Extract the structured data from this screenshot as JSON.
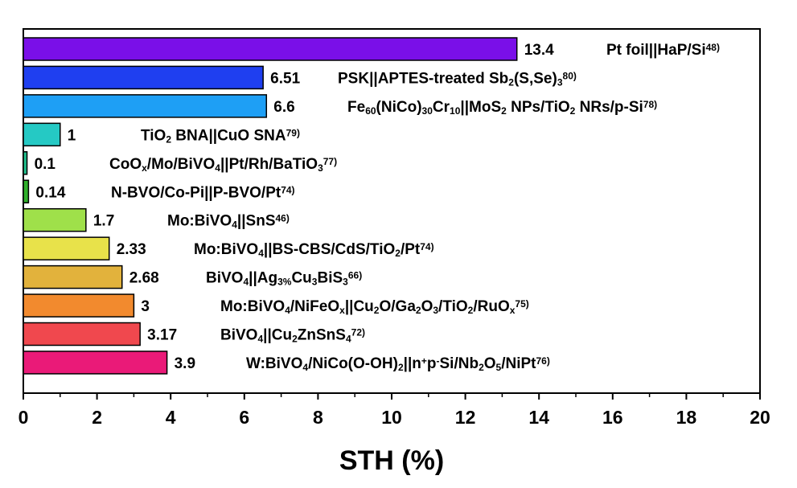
{
  "chart_data": {
    "type": "bar",
    "orientation": "horizontal",
    "xlabel": "STH (%)",
    "xlim": [
      0,
      20
    ],
    "xticks": [
      "0",
      "2",
      "4",
      "6",
      "8",
      "10",
      "12",
      "14",
      "16",
      "18",
      "20"
    ],
    "grid": false,
    "bars": [
      {
        "value": 13.4,
        "value_label": "13.4",
        "color": "#7a0fe8",
        "label": [
          {
            "t": "Pt foil||HaP/Si"
          },
          {
            "t": "48)",
            "s": "sup"
          }
        ]
      },
      {
        "value": 6.51,
        "value_label": "6.51",
        "color": "#1f3ff0",
        "label": [
          {
            "t": "PSK||APTES-treated Sb"
          },
          {
            "t": "2",
            "s": "sub"
          },
          {
            "t": "(S,Se)"
          },
          {
            "t": "3",
            "s": "sub"
          },
          {
            "t": "80)",
            "s": "sup"
          }
        ]
      },
      {
        "value": 6.6,
        "value_label": "6.6",
        "color": "#1e9ff5",
        "label": [
          {
            "t": "Fe"
          },
          {
            "t": "60",
            "s": "sub"
          },
          {
            "t": "(NiCo)"
          },
          {
            "t": "30",
            "s": "sub"
          },
          {
            "t": "Cr"
          },
          {
            "t": "10",
            "s": "sub"
          },
          {
            "t": "||MoS"
          },
          {
            "t": "2",
            "s": "sub"
          },
          {
            "t": " NPs/TiO"
          },
          {
            "t": "2",
            "s": "sub"
          },
          {
            "t": " NRs/p-Si"
          },
          {
            "t": "78)",
            "s": "sup"
          }
        ]
      },
      {
        "value": 1,
        "value_label": "1",
        "color": "#25c9c4",
        "label": [
          {
            "t": "TiO"
          },
          {
            "t": "2",
            "s": "sub"
          },
          {
            "t": " BNA||CuO SNA"
          },
          {
            "t": "79)",
            "s": "sup"
          }
        ]
      },
      {
        "value": 0.1,
        "value_label": "0.1",
        "color": "#1fbf8c",
        "label": [
          {
            "t": "CoO"
          },
          {
            "t": "x",
            "s": "sub"
          },
          {
            "t": "/Mo/BiVO"
          },
          {
            "t": "4",
            "s": "sub"
          },
          {
            "t": "||Pt/Rh/BaTiO"
          },
          {
            "t": "3",
            "s": "sub"
          },
          {
            "t": "77)",
            "s": "sup"
          }
        ]
      },
      {
        "value": 0.14,
        "value_label": "0.14",
        "color": "#2fb02a",
        "label": [
          {
            "t": "N-BVO/Co-Pi||P-BVO/Pt"
          },
          {
            "t": "74)",
            "s": "sup"
          }
        ]
      },
      {
        "value": 1.7,
        "value_label": "1.7",
        "color": "#9fe04a",
        "label": [
          {
            "t": "Mo:BiVO"
          },
          {
            "t": "4",
            "s": "sub"
          },
          {
            "t": "||SnS"
          },
          {
            "t": "46)",
            "s": "sup"
          }
        ]
      },
      {
        "value": 2.33,
        "value_label": "2.33",
        "color": "#e8e24a",
        "label": [
          {
            "t": "Mo:BiVO"
          },
          {
            "t": "4",
            "s": "sub"
          },
          {
            "t": "||BS-CBS/CdS/TiO"
          },
          {
            "t": "2",
            "s": "sub"
          },
          {
            "t": "/Pt"
          },
          {
            "t": "74)",
            "s": "sup"
          }
        ]
      },
      {
        "value": 2.68,
        "value_label": "2.68",
        "color": "#e2b23c",
        "label": [
          {
            "t": "BiVO"
          },
          {
            "t": "4",
            "s": "sub"
          },
          {
            "t": "||Ag"
          },
          {
            "t": "3%",
            "s": "sub"
          },
          {
            "t": "Cu"
          },
          {
            "t": "3",
            "s": "sub"
          },
          {
            "t": "BiS"
          },
          {
            "t": "3",
            "s": "sub"
          },
          {
            "t": "66)",
            "s": "sup"
          }
        ]
      },
      {
        "value": 3,
        "value_label": "3",
        "color": "#f28a2e",
        "label": [
          {
            "t": "Mo:BiVO"
          },
          {
            "t": "4",
            "s": "sub"
          },
          {
            "t": "/NiFeO"
          },
          {
            "t": "x",
            "s": "sub"
          },
          {
            "t": "||Cu"
          },
          {
            "t": "2",
            "s": "sub"
          },
          {
            "t": "O/Ga"
          },
          {
            "t": "2",
            "s": "sub"
          },
          {
            "t": "O"
          },
          {
            "t": "3",
            "s": "sub"
          },
          {
            "t": "/TiO"
          },
          {
            "t": "2",
            "s": "sub"
          },
          {
            "t": "/RuO"
          },
          {
            "t": "x",
            "s": "sub"
          },
          {
            "t": "75)",
            "s": "sup"
          }
        ]
      },
      {
        "value": 3.17,
        "value_label": "3.17",
        "color": "#f0484e",
        "label": [
          {
            "t": "BiVO"
          },
          {
            "t": "4",
            "s": "sub"
          },
          {
            "t": "||Cu"
          },
          {
            "t": "2",
            "s": "sub"
          },
          {
            "t": "ZnSnS"
          },
          {
            "t": "4",
            "s": "sub"
          },
          {
            "t": "72)",
            "s": "sup"
          }
        ]
      },
      {
        "value": 3.9,
        "value_label": "3.9",
        "color": "#ea1a78",
        "label": [
          {
            "t": "W:BiVO"
          },
          {
            "t": "4",
            "s": "sub"
          },
          {
            "t": "/NiCo(O-OH)"
          },
          {
            "t": "2",
            "s": "sub"
          },
          {
            "t": "||n"
          },
          {
            "t": "+",
            "s": "sup"
          },
          {
            "t": "p"
          },
          {
            "t": "-",
            "s": "sup"
          },
          {
            "t": "Si/Nb"
          },
          {
            "t": "2",
            "s": "sub"
          },
          {
            "t": "O"
          },
          {
            "t": "5",
            "s": "sub"
          },
          {
            "t": "/NiPt"
          },
          {
            "t": "76)",
            "s": "sup"
          }
        ]
      }
    ]
  }
}
